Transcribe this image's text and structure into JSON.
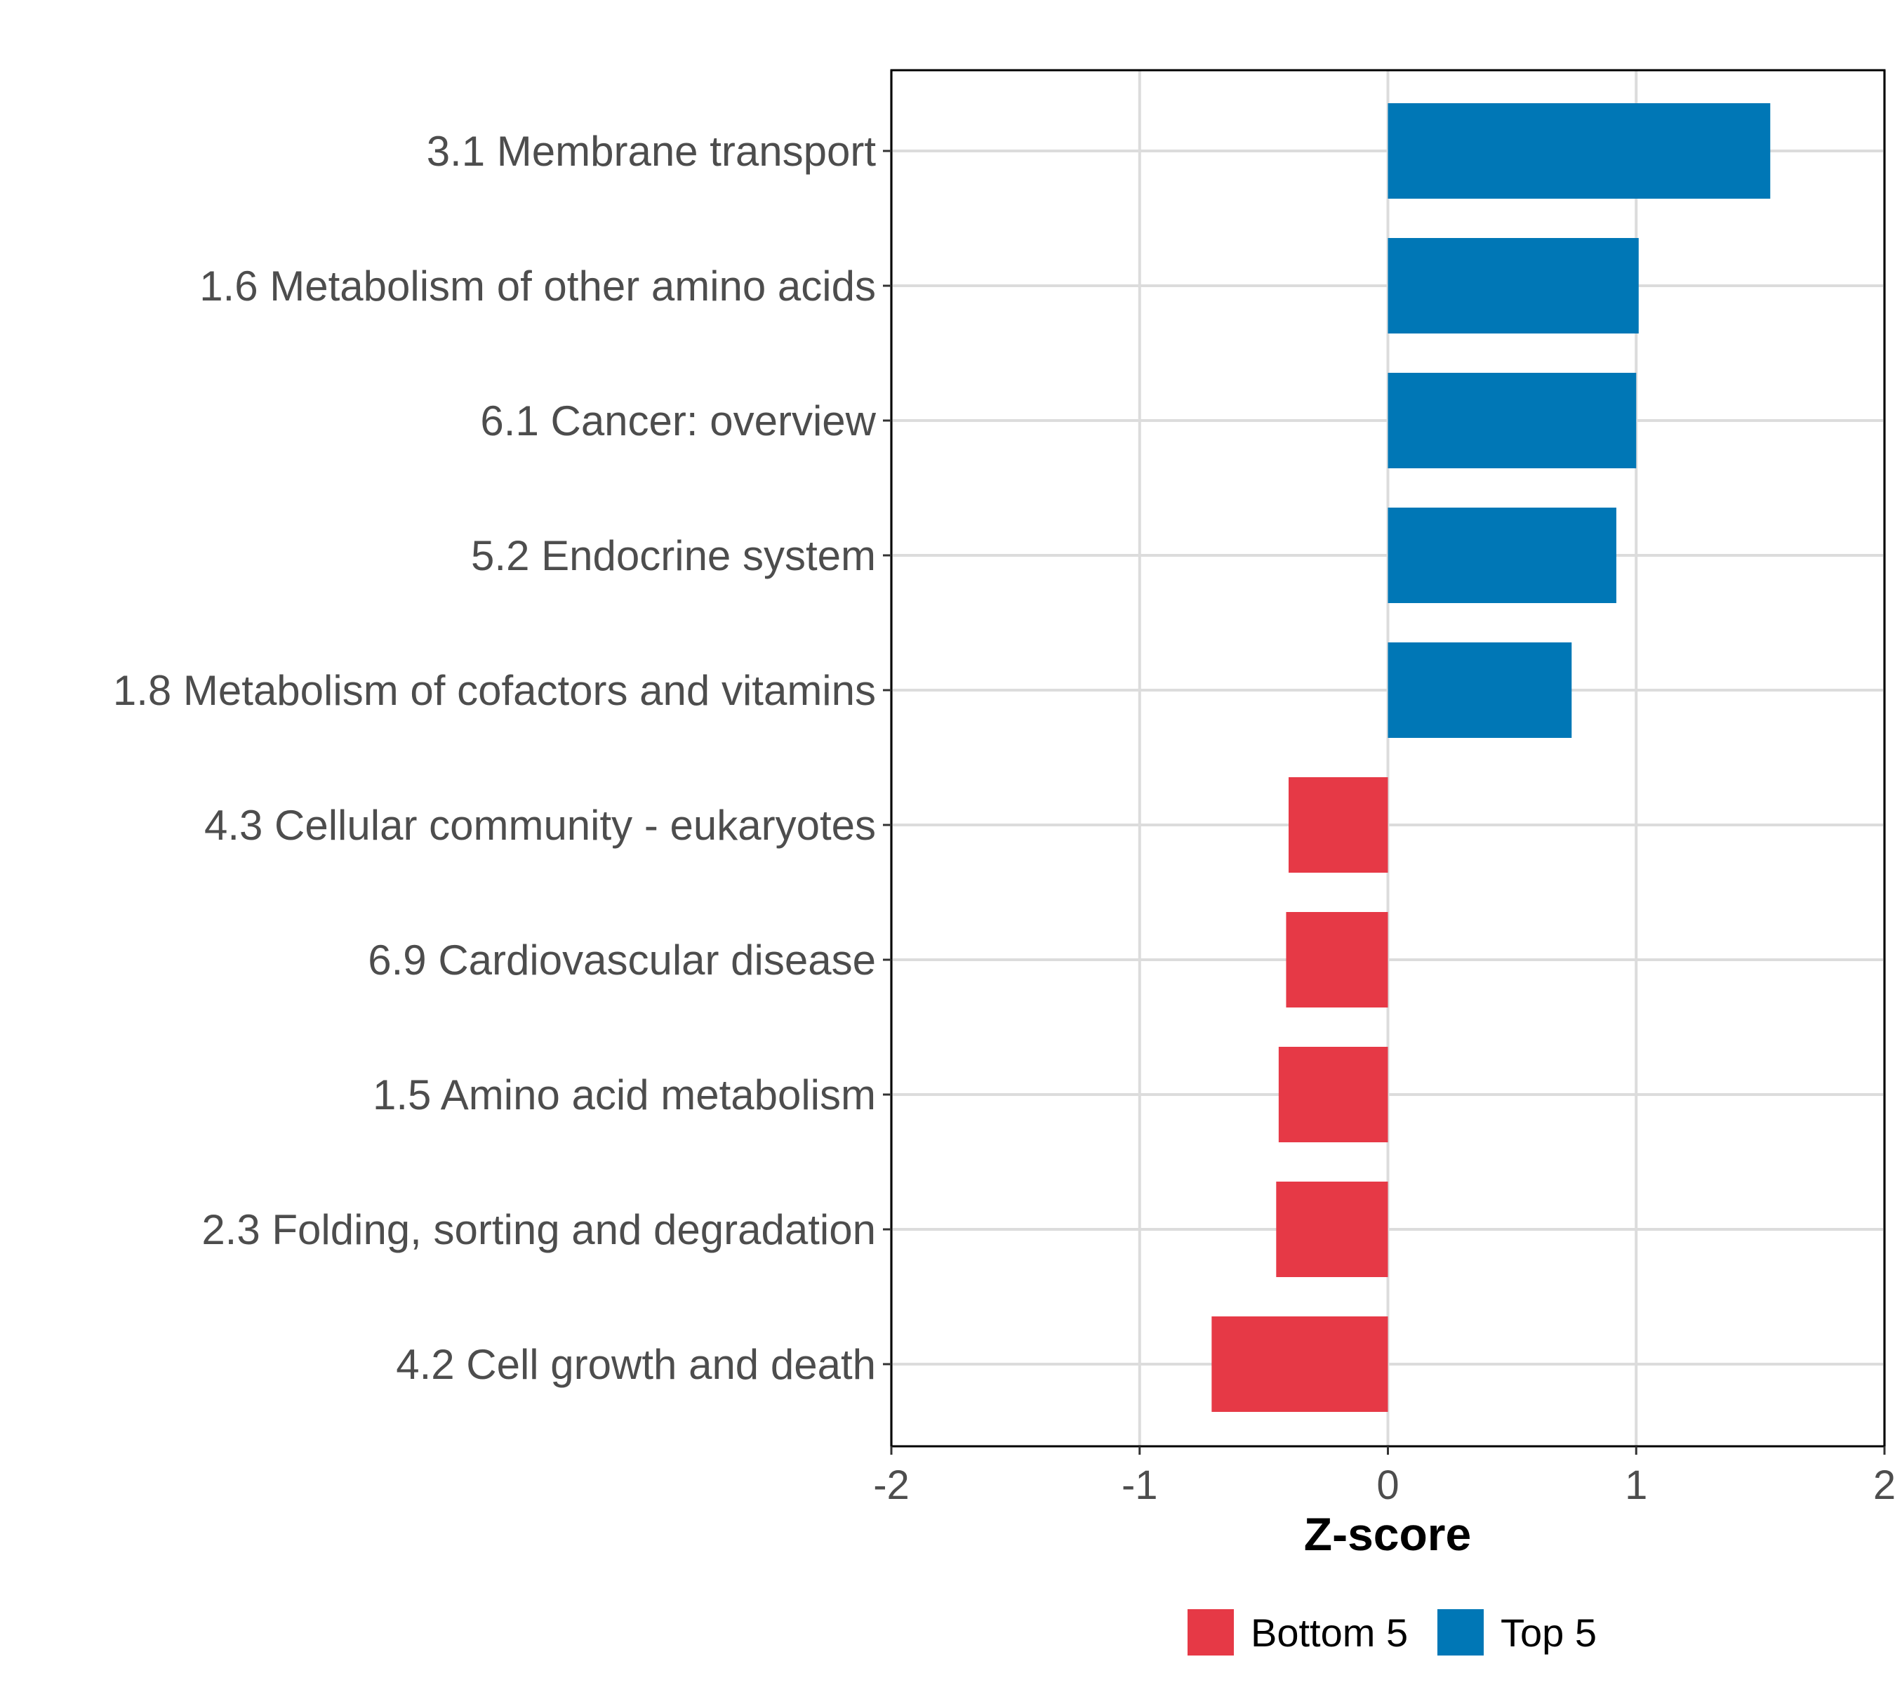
{
  "chart_data": {
    "type": "bar",
    "orientation": "horizontal",
    "categories": [
      "3.1 Membrane transport",
      "1.6 Metabolism of other amino acids",
      "6.1 Cancer: overview",
      "5.2 Endocrine system",
      "1.8 Metabolism of cofactors and vitamins",
      "4.3 Cellular community - eukaryotes",
      "6.9 Cardiovascular disease",
      "1.5 Amino acid metabolism",
      "2.3 Folding, sorting and degradation",
      "4.2 Cell growth and death"
    ],
    "values": [
      1.54,
      1.01,
      1.0,
      0.92,
      0.74,
      -0.4,
      -0.41,
      -0.44,
      -0.45,
      -0.71
    ],
    "groups": [
      "Top 5",
      "Top 5",
      "Top 5",
      "Top 5",
      "Top 5",
      "Bottom 5",
      "Bottom 5",
      "Bottom 5",
      "Bottom 5",
      "Bottom 5"
    ],
    "xlabel": "Z-score",
    "ylabel": "",
    "xlim": [
      -2,
      2
    ],
    "xticks": [
      -2,
      -1,
      0,
      1,
      2
    ],
    "xtick_labels": [
      "-2",
      "-1",
      "0",
      "1",
      "2"
    ],
    "grid": true,
    "legend_position": "bottom",
    "legend": [
      {
        "name": "Bottom 5",
        "color": "#e63946"
      },
      {
        "name": "Top 5",
        "color": "#0077b6"
      }
    ]
  }
}
